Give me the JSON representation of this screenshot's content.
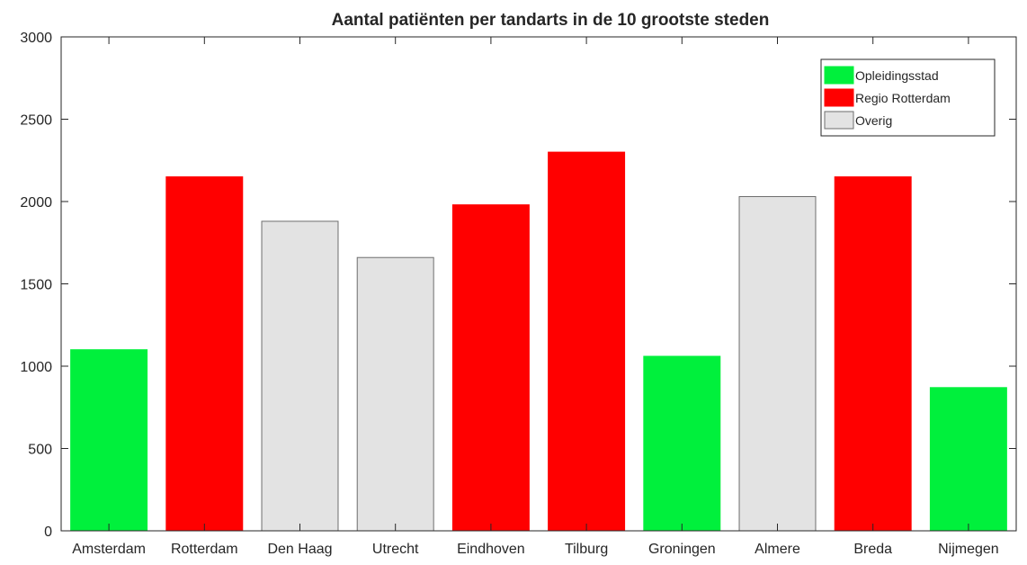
{
  "chart_data": {
    "type": "bar",
    "title": "Aantal patiënten per tandarts in de 10 grootste steden",
    "xlabel": "",
    "ylabel": "",
    "categories": [
      "Amsterdam",
      "Rotterdam",
      "Den Haag",
      "Utrecht",
      "Eindhoven",
      "Tilburg",
      "Groningen",
      "Almere",
      "Breda",
      "Nijmegen"
    ],
    "values": [
      1100,
      2150,
      1880,
      1660,
      1980,
      2300,
      1060,
      2030,
      2150,
      870
    ],
    "groups": [
      "Opleidingsstad",
      "Regio Rotterdam",
      "Overig",
      "Overig",
      "Regio Rotterdam",
      "Regio Rotterdam",
      "Opleidingsstad",
      "Overig",
      "Regio Rotterdam",
      "Opleidingsstad"
    ],
    "ylim": [
      0,
      3000
    ],
    "yticks": [
      0,
      500,
      1000,
      1500,
      2000,
      2500,
      3000
    ],
    "grid": false,
    "legend": {
      "placement": "top-right",
      "entries": [
        {
          "label": "Opleidingsstad",
          "color": "#00f03c"
        },
        {
          "label": "Regio Rotterdam",
          "color": "#ff0000"
        },
        {
          "label": "Overig",
          "color": "#e3e3e3"
        }
      ]
    }
  }
}
